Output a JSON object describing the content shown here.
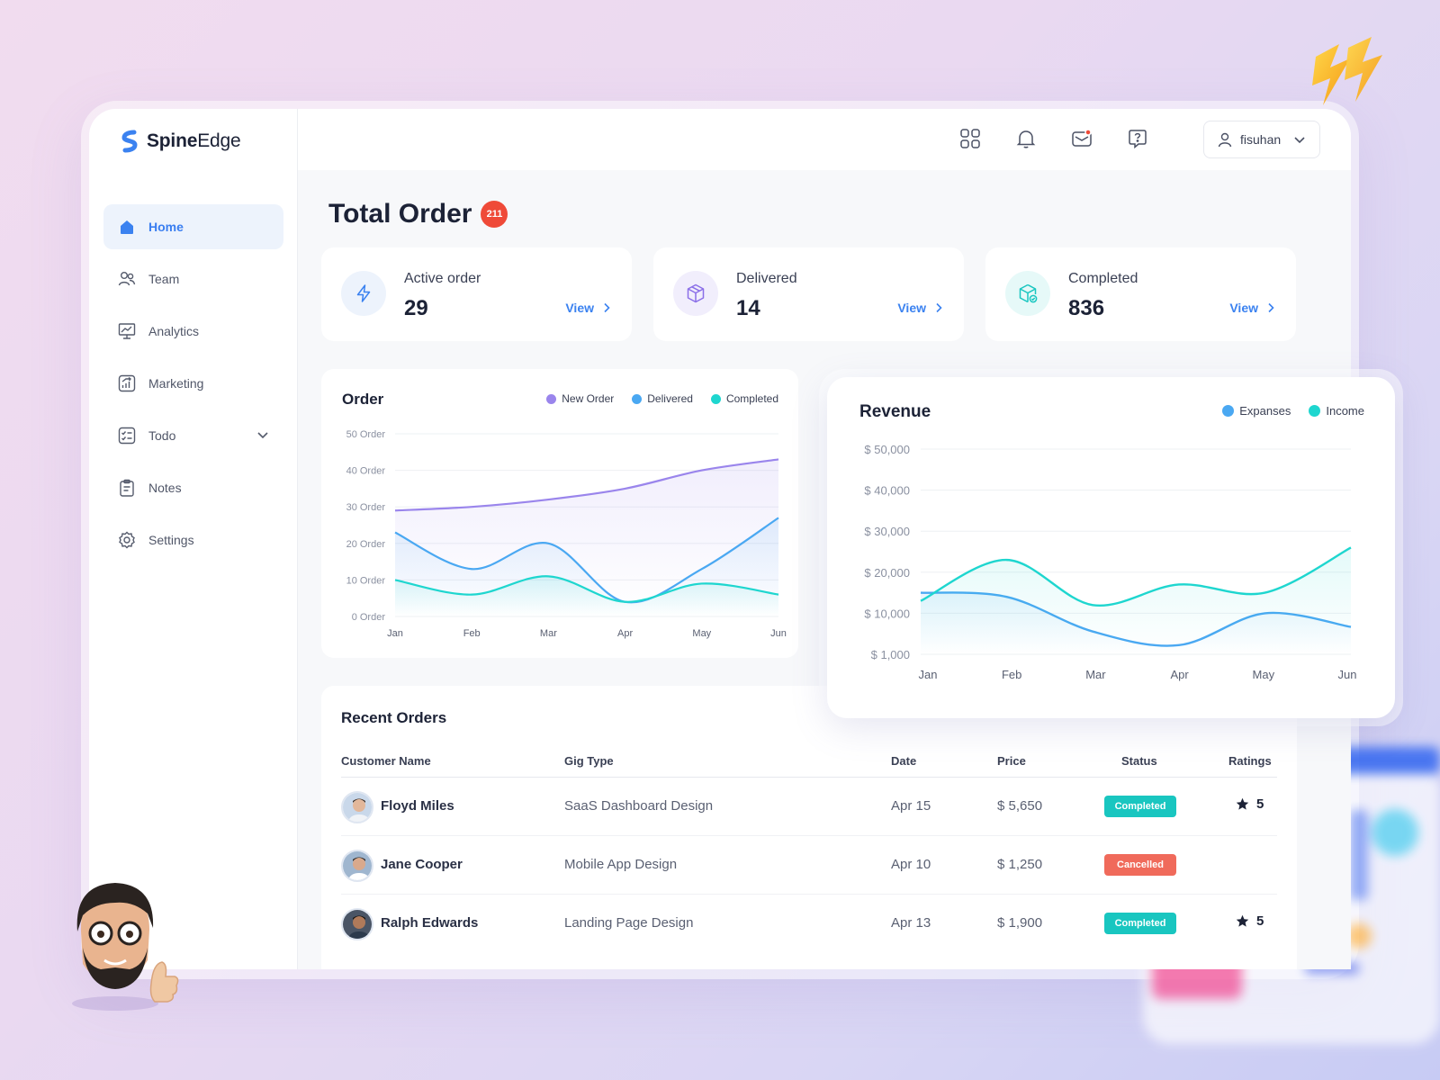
{
  "app": {
    "logo_bold": "Spine",
    "logo_light": "Edge"
  },
  "sidebar": {
    "items": [
      {
        "label": "Home",
        "icon": "home-icon",
        "active": true
      },
      {
        "label": "Team",
        "icon": "team-icon"
      },
      {
        "label": "Analytics",
        "icon": "analytics-icon"
      },
      {
        "label": "Marketing",
        "icon": "marketing-icon"
      },
      {
        "label": "Todo",
        "icon": "todo-icon",
        "expandable": true
      },
      {
        "label": "Notes",
        "icon": "notes-icon"
      },
      {
        "label": "Settings",
        "icon": "gear-icon"
      }
    ]
  },
  "topbar": {
    "icons": [
      "grid-icon",
      "bell-icon",
      "mail-icon",
      "help-chat-icon"
    ],
    "user": "fisuhan"
  },
  "page": {
    "title": "Total Order",
    "badge": "211"
  },
  "stats": [
    {
      "label": "Active order",
      "value": "29",
      "view": "View",
      "icon": "bolt-icon",
      "color": "#3b82f0"
    },
    {
      "label": "Delivered",
      "value": "14",
      "view": "View",
      "icon": "box-icon",
      "color": "#8b6fe8"
    },
    {
      "label": "Completed",
      "value": "836",
      "view": "View",
      "icon": "package-check-icon",
      "color": "#19c6c0"
    }
  ],
  "colors": {
    "accent": "#3b82f0",
    "purple": "#9a85ec",
    "blue": "#4aa8f2",
    "teal": "#1ed6cf",
    "danger": "#ef4a38",
    "cancel": "#f06a5b"
  },
  "order_chart": {
    "title": "Order",
    "legend": [
      "New Order",
      "Delivered",
      "Completed"
    ],
    "y_ticks": [
      "50 Order",
      "40 Order",
      "30 Order",
      "20 Order",
      "10 Order",
      "0 Order"
    ],
    "x_ticks": [
      "Jan",
      "Feb",
      "Mar",
      "Apr",
      "May",
      "Jun"
    ]
  },
  "revenue_chart": {
    "title": "Revenue",
    "legend": [
      "Expanses",
      "Income"
    ],
    "y_ticks": [
      "$ 50,000",
      "$ 40,000",
      "$ 30,000",
      "$ 20,000",
      "$ 10,000",
      "$ 1,000"
    ],
    "x_ticks": [
      "Jan",
      "Feb",
      "Mar",
      "Apr",
      "May",
      "Jun"
    ]
  },
  "chart_data": [
    {
      "type": "area",
      "title": "Order",
      "x": [
        "Jan",
        "Feb",
        "Mar",
        "Apr",
        "May",
        "Jun"
      ],
      "ylim": [
        0,
        50
      ],
      "legend_position": "top-right",
      "grid": true,
      "series": [
        {
          "name": "New Order",
          "values": [
            29,
            30,
            32,
            35,
            40,
            43
          ]
        },
        {
          "name": "Delivered",
          "values": [
            23,
            13,
            20,
            4,
            13,
            27
          ]
        },
        {
          "name": "Completed",
          "values": [
            10,
            6,
            11,
            4,
            9,
            6
          ]
        }
      ]
    },
    {
      "type": "area",
      "title": "Revenue",
      "x": [
        "Jan",
        "Feb",
        "Mar",
        "Apr",
        "May",
        "Jun"
      ],
      "y_ticks": [
        1000,
        10000,
        20000,
        30000,
        40000,
        50000
      ],
      "legend_position": "top-right",
      "grid": true,
      "series": [
        {
          "name": "Expanses",
          "values": [
            15000,
            14000,
            6000,
            3000,
            10000,
            7000
          ]
        },
        {
          "name": "Income",
          "values": [
            13000,
            23000,
            12000,
            17000,
            15000,
            26000
          ]
        }
      ]
    }
  ],
  "recent_orders": {
    "title": "Recent Orders",
    "columns": [
      "Customer Name",
      "Gig Type",
      "Date",
      "Price",
      "Status",
      "Ratings"
    ],
    "rows": [
      {
        "name": "Floyd Miles",
        "gig": "SaaS Dashboard Design",
        "date": "Apr 15",
        "price": "$ 5,650",
        "status": "Completed",
        "rating": "5"
      },
      {
        "name": "Jane Cooper",
        "gig": "Mobile App Design",
        "date": "Apr 10",
        "price": "$ 1,250",
        "status": "Cancelled",
        "rating": ""
      },
      {
        "name": "Ralph Edwards",
        "gig": "Landing Page Design",
        "date": "Apr 13",
        "price": "$ 1,900",
        "status": "Completed",
        "rating": "5"
      }
    ]
  }
}
